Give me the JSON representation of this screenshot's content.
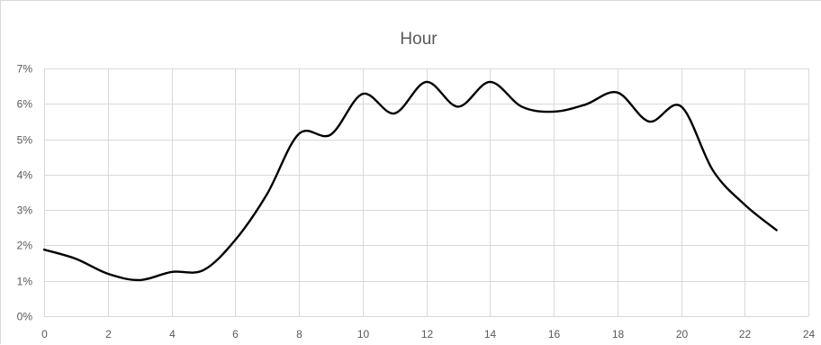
{
  "chart_data": {
    "type": "line",
    "title": "Hour",
    "xlabel": "",
    "ylabel": "",
    "x": [
      0,
      1,
      2,
      3,
      4,
      5,
      6,
      7,
      8,
      9,
      10,
      11,
      12,
      13,
      14,
      15,
      16,
      17,
      18,
      19,
      20,
      21,
      22,
      23
    ],
    "series": [
      {
        "name": "",
        "color": "#000000",
        "smooth": true,
        "values": [
          0.0188,
          0.0162,
          0.012,
          0.0102,
          0.0125,
          0.013,
          0.0215,
          0.0345,
          0.0515,
          0.0513,
          0.0628,
          0.0573,
          0.0662,
          0.0592,
          0.0662,
          0.0592,
          0.0578,
          0.0598,
          0.0632,
          0.055,
          0.0593,
          0.0412,
          0.0315,
          0.0243
        ]
      }
    ],
    "xlim": [
      0,
      24
    ],
    "ylim": [
      0,
      0.07
    ],
    "x_ticks": [
      "0",
      "2",
      "4",
      "6",
      "8",
      "10",
      "12",
      "14",
      "16",
      "18",
      "20",
      "22",
      "24"
    ],
    "y_ticks": [
      "0%",
      "1%",
      "2%",
      "3%",
      "4%",
      "5%",
      "6%",
      "7%"
    ],
    "gridlines": {
      "x": true,
      "y": true
    },
    "legend": "none",
    "colors": {
      "line": "#000000",
      "grid": "#d9d9d9",
      "text": "#595959"
    }
  }
}
